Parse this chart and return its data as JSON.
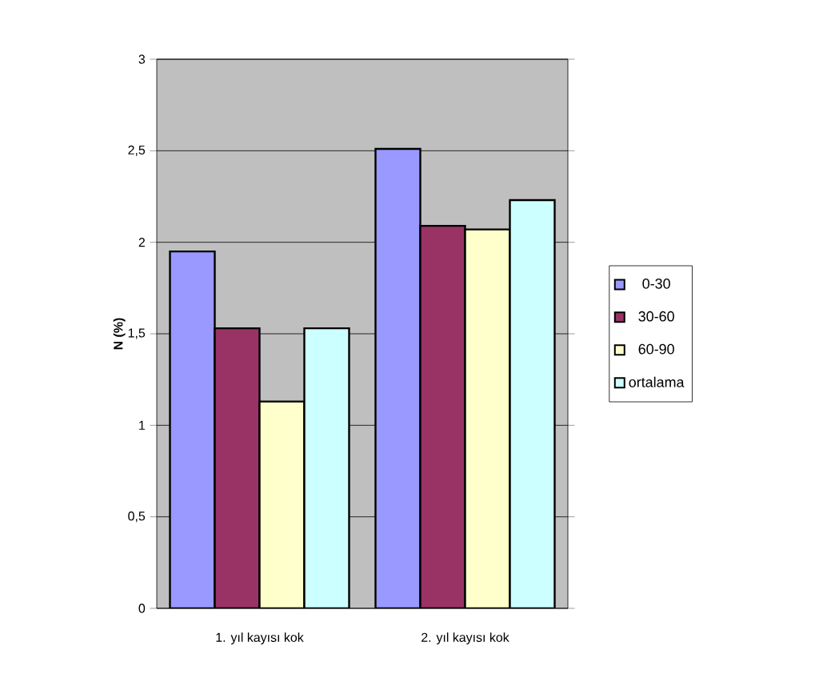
{
  "chart_data": {
    "type": "bar",
    "ylabel": "N (%)",
    "categories": [
      "1. yıl kayısı kok",
      "2. yıl kayısı kok"
    ],
    "series": [
      {
        "name": "0-30",
        "color": "#9999ff",
        "values": [
          1.95,
          2.51
        ]
      },
      {
        "name": "30-60",
        "color": "#993366",
        "values": [
          1.53,
          2.09
        ]
      },
      {
        "name": "60-90",
        "color": "#ffffcc",
        "values": [
          1.13,
          2.07
        ]
      },
      {
        "name": "ortalama",
        "color": "#ccffff",
        "values": [
          1.53,
          2.23
        ]
      }
    ],
    "ylim": [
      0,
      3
    ],
    "yticks": [
      0,
      {
        "value": 0.5,
        "label": "0,5"
      },
      1,
      {
        "value": 1.5,
        "label": "1,5"
      },
      2,
      {
        "value": 2.5,
        "label": "2,5"
      },
      3
    ],
    "grid": "y",
    "legend": "right"
  }
}
